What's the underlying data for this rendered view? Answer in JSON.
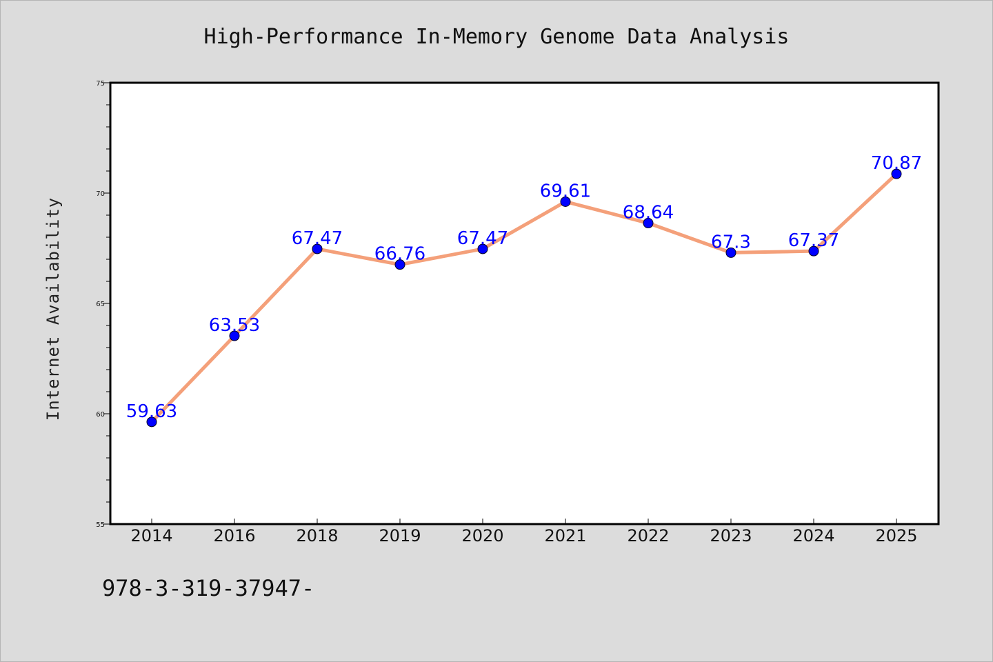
{
  "footnote": "978-3-319-37947-",
  "colors": {
    "background": "#dcdcdc",
    "plot_background": "#ffffff",
    "line": "#f4a07a",
    "marker": "#0000ff",
    "data_label": "#0000ff"
  },
  "chart_data": {
    "type": "line",
    "title": "High-Performance In-Memory Genome Data Analysis",
    "xlabel": "",
    "ylabel": "Internet Availability",
    "categories": [
      "2014",
      "2016",
      "2018",
      "2019",
      "2020",
      "2021",
      "2022",
      "2023",
      "2024",
      "2025"
    ],
    "values": [
      59.63,
      63.53,
      67.47,
      66.76,
      67.47,
      69.61,
      68.64,
      67.3,
      67.37,
      70.87
    ],
    "data_labels": [
      "59.63",
      "63.53",
      "67.47",
      "66.76",
      "67.47",
      "69.61",
      "68.64",
      "67.3",
      "67.37",
      "70.87"
    ],
    "ylim": [
      55,
      75
    ],
    "yticks": [
      55,
      60,
      65,
      70,
      75
    ],
    "grid": false,
    "legend": "none"
  }
}
